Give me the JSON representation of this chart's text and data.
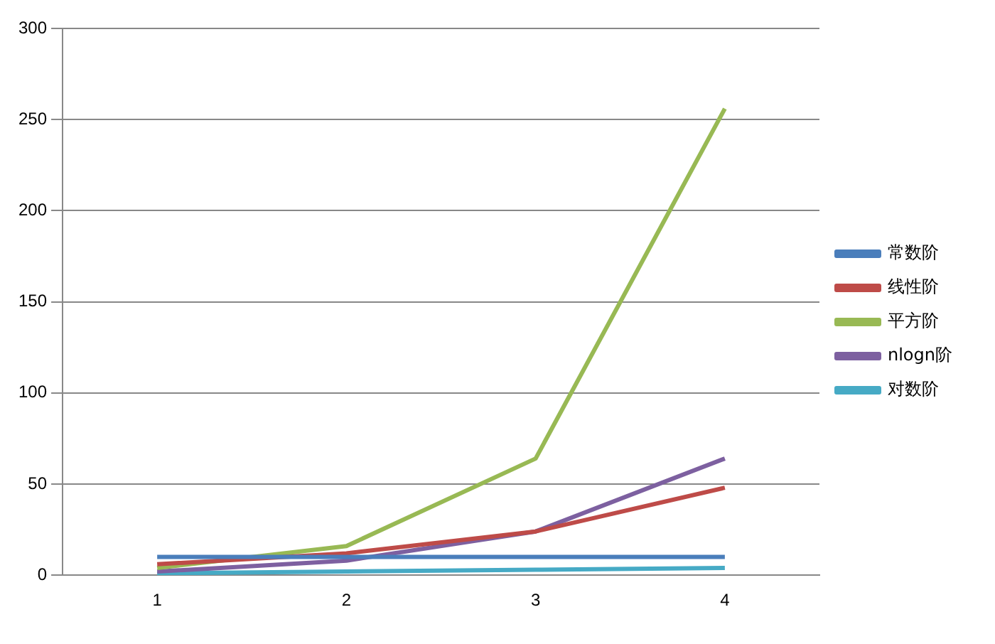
{
  "chart_data": {
    "type": "line",
    "categories": [
      "1",
      "2",
      "3",
      "4"
    ],
    "series": [
      {
        "name": "常数阶",
        "color": "#4a7ebb",
        "values": [
          10,
          10,
          10,
          10
        ]
      },
      {
        "name": "线性阶",
        "color": "#be4b48",
        "values": [
          6,
          12,
          24,
          48
        ]
      },
      {
        "name": "平方阶",
        "color": "#98b954",
        "values": [
          4,
          16,
          64,
          256
        ]
      },
      {
        "name": "nlogn阶",
        "color": "#7d60a0",
        "values": [
          2,
          8,
          24,
          64
        ]
      },
      {
        "name": "对数阶",
        "color": "#46aac5",
        "values": [
          1,
          2,
          3,
          4
        ]
      }
    ],
    "ylim": [
      0,
      300
    ],
    "yticks": [
      0,
      50,
      100,
      150,
      200,
      250,
      300
    ],
    "grid": "y",
    "legend": "right",
    "marker": "none",
    "line_style": "solid"
  }
}
